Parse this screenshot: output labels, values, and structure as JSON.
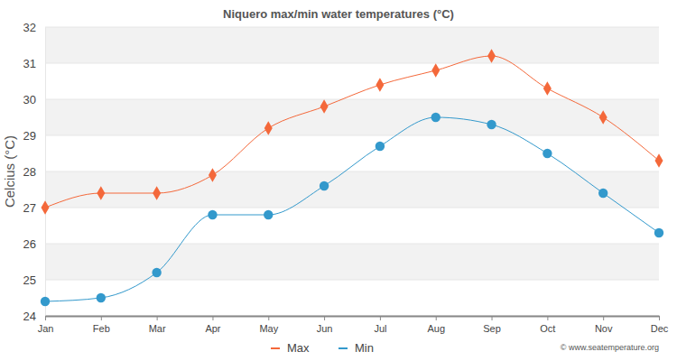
{
  "chart_data": {
    "type": "line",
    "title": "Niquero max/min water temperatures (°C)",
    "y_label": "Celcius (°C)",
    "categories": [
      "Jan",
      "Feb",
      "Mar",
      "Apr",
      "May",
      "Jun",
      "Jul",
      "Aug",
      "Sep",
      "Oct",
      "Nov",
      "Dec"
    ],
    "series": [
      {
        "name": "Max",
        "color": "#f4683a",
        "marker": "diamond",
        "values": [
          27.0,
          27.4,
          27.4,
          27.9,
          29.2,
          29.8,
          30.4,
          30.8,
          31.2,
          30.3,
          29.5,
          28.3
        ]
      },
      {
        "name": "Min",
        "color": "#3399cc",
        "marker": "circle",
        "values": [
          24.4,
          24.5,
          25.2,
          26.8,
          26.8,
          27.6,
          28.7,
          29.5,
          29.3,
          28.5,
          27.4,
          26.3
        ]
      }
    ],
    "ylim": [
      24,
      32
    ],
    "yticks": [
      24,
      25,
      26,
      27,
      28,
      29,
      30,
      31,
      32
    ],
    "grid": true,
    "legend": "bottom",
    "annotations": [
      "© www.seatemperature.org"
    ]
  }
}
